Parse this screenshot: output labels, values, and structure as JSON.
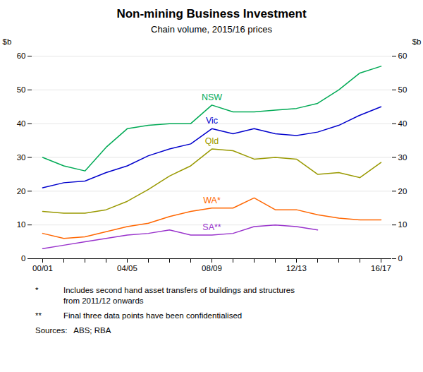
{
  "chart_data": {
    "type": "line",
    "title": "Non-mining Business Investment",
    "subtitle": "Chain volume, 2015/16 prices",
    "categories": [
      "00/01",
      null,
      null,
      null,
      "04/05",
      null,
      null,
      null,
      "08/09",
      null,
      null,
      null,
      "12/13",
      null,
      null,
      null,
      "16/17"
    ],
    "series": [
      {
        "name": "NSW",
        "color": "#00AA55",
        "values": [
          30.0,
          27.5,
          26.0,
          33.0,
          38.5,
          39.5,
          40.0,
          40.0,
          45.5,
          43.5,
          43.5,
          44.0,
          44.5,
          46.0,
          50.0,
          55.0,
          57.0
        ]
      },
      {
        "name": "Vic",
        "color": "#0000CC",
        "values": [
          21.0,
          22.5,
          23.0,
          25.5,
          27.5,
          30.5,
          32.5,
          34.0,
          38.5,
          37.0,
          38.5,
          37.0,
          36.5,
          37.5,
          39.5,
          42.5,
          45.0
        ]
      },
      {
        "name": "Qld",
        "color": "#999900",
        "values": [
          14.0,
          13.5,
          13.5,
          14.5,
          17.0,
          20.5,
          24.5,
          27.5,
          32.5,
          32.0,
          29.5,
          30.0,
          29.5,
          25.0,
          25.5,
          24.0,
          28.5
        ]
      },
      {
        "name": "WA*",
        "color": "#FF6600",
        "values": [
          7.5,
          6.0,
          6.5,
          8.0,
          9.5,
          10.5,
          12.5,
          14.0,
          15.0,
          15.0,
          18.0,
          14.5,
          14.5,
          13.0,
          12.0,
          11.5,
          11.5
        ]
      },
      {
        "name": "SA**",
        "color": "#9933CC",
        "values": [
          3.0,
          4.0,
          5.0,
          6.0,
          7.0,
          7.5,
          8.5,
          7.0,
          7.0,
          7.5,
          9.5,
          10.0,
          9.5,
          8.5,
          null,
          null,
          null
        ]
      }
    ],
    "y_label": "$b",
    "ylim": [
      0,
      60
    ],
    "yticks": [
      0,
      10,
      20,
      30,
      40,
      50,
      60
    ],
    "y2_label": "$b",
    "y2lim": [
      0,
      60
    ],
    "y2ticks": [
      0,
      10,
      20,
      30,
      40,
      50,
      60
    ],
    "grid": true,
    "notes": [
      {
        "marker": "*",
        "text": "Includes second hand asset transfers of buildings and structures\nfrom 2011/12 onwards"
      },
      {
        "marker": "**",
        "text": "Final three data points have been confidentialised"
      }
    ],
    "source": "Sources:   ABS; RBA"
  }
}
